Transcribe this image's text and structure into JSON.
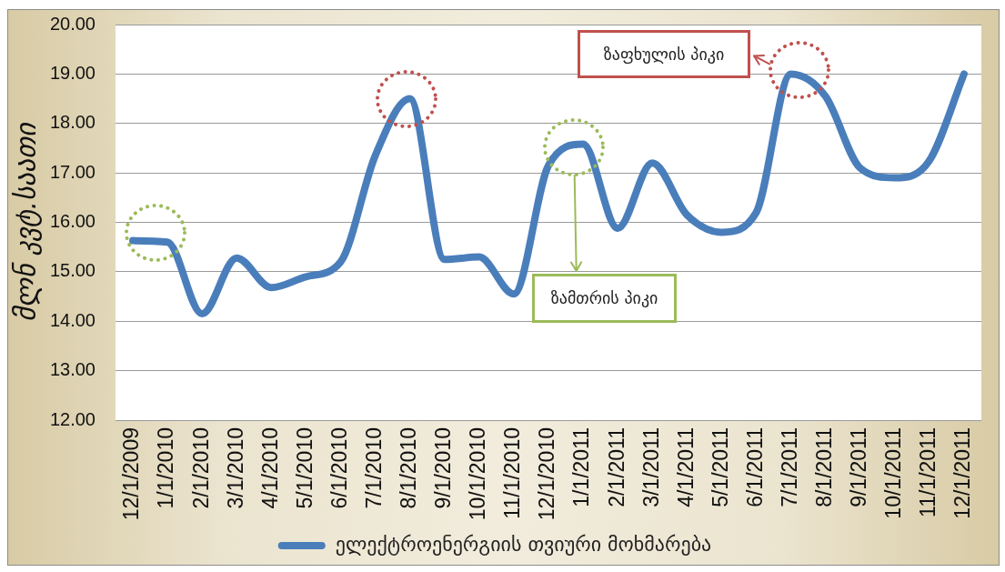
{
  "chart_data": {
    "type": "line",
    "ylabel": "მლნ კვტ.საათი",
    "categories": [
      "12/1/2009",
      "1/1/2010",
      "2/1/2010",
      "3/1/2010",
      "4/1/2010",
      "5/1/2010",
      "6/1/2010",
      "7/1/2010",
      "8/1/2010",
      "9/1/2010",
      "10/1/2010",
      "11/1/2010",
      "12/1/2010",
      "1/1/2011",
      "2/1/2011",
      "3/1/2011",
      "4/1/2011",
      "5/1/2011",
      "6/1/2011",
      "7/1/2011",
      "8/1/2011",
      "9/1/2011",
      "10/1/2011",
      "11/1/2011",
      "12/1/2011"
    ],
    "series": [
      {
        "name": "ელექტროენერგიის თვიური მოხმარება",
        "color": "#4a7ebb",
        "values": [
          15.63,
          15.6,
          14.15,
          15.28,
          14.68,
          14.9,
          15.2,
          17.35,
          18.5,
          15.25,
          15.3,
          14.55,
          17.15,
          17.58,
          15.88,
          17.2,
          16.15,
          15.8,
          16.2,
          19.0,
          18.55,
          17.1,
          16.9,
          17.25,
          19.0
        ]
      }
    ],
    "ylim": [
      12,
      20
    ],
    "yticks": [
      {
        "value": 12,
        "label": "12.00"
      },
      {
        "value": 13,
        "label": "13.00"
      },
      {
        "value": 14,
        "label": "14.00"
      },
      {
        "value": 15,
        "label": "15.00"
      },
      {
        "value": 16,
        "label": "16.00"
      },
      {
        "value": 17,
        "label": "17.00"
      },
      {
        "value": 18,
        "label": "18.00"
      },
      {
        "value": 19,
        "label": "19.00"
      },
      {
        "value": 20,
        "label": "20.00"
      }
    ],
    "grid": "y",
    "legend": "bottom",
    "marker": "none",
    "annotations": [
      "ზაფხულის პიკი",
      "ზამთრის პიკი"
    ]
  }
}
